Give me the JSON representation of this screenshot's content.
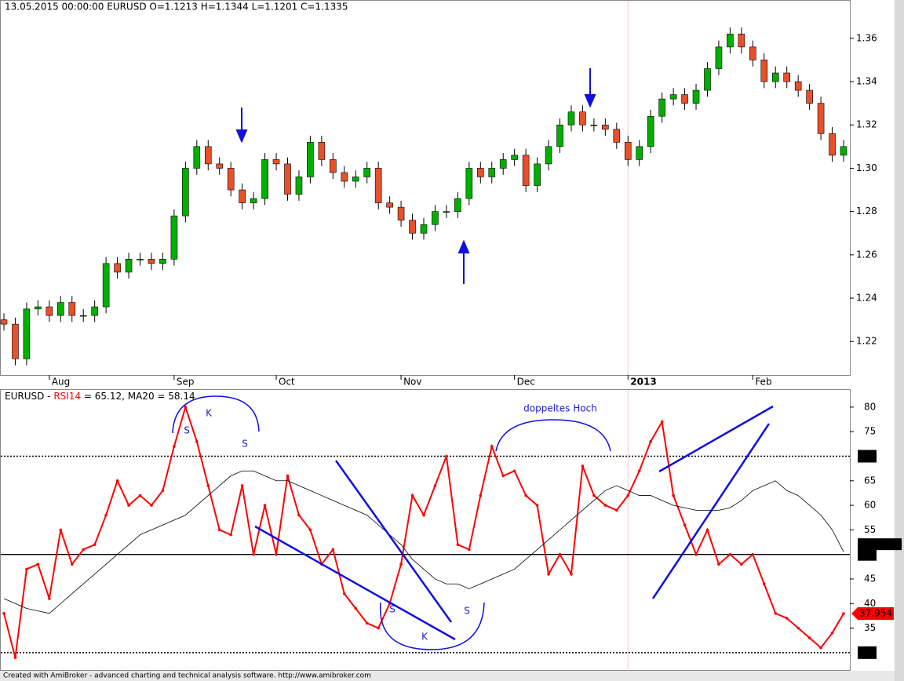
{
  "chart_data": [
    {
      "type": "candlestick",
      "title": "13.05.2015 00:00:00 EURUSD  O=1.1213  H=1.1344  L=1.1201  C=1.1335",
      "up_color": "#00b000",
      "down_color": "#e8502a",
      "ylim": [
        1.2045,
        1.3777
      ],
      "yticks": [
        {
          "value": 1.22,
          "label": "1.22"
        },
        {
          "value": 1.24,
          "label": "1.24"
        },
        {
          "value": 1.26,
          "label": "1.26"
        },
        {
          "value": 1.28,
          "label": "1.28"
        },
        {
          "value": 1.3,
          "label": "1.30"
        },
        {
          "value": 1.32,
          "label": "1.32"
        },
        {
          "value": 1.34,
          "label": "1.34"
        },
        {
          "value": 1.36,
          "label": "1.36"
        }
      ],
      "month_labels": [
        {
          "value": 4,
          "label": "Aug"
        },
        {
          "value": 15,
          "label": "Sep"
        },
        {
          "value": 24,
          "label": "Oct"
        },
        {
          "value": 35,
          "label": "Nov"
        },
        {
          "value": 45,
          "label": "Dec"
        },
        {
          "value": 55,
          "label": "2013"
        },
        {
          "value": 66,
          "label": "Feb"
        }
      ],
      "open": [
        1.23,
        1.228,
        1.212,
        1.235,
        1.236,
        1.232,
        1.238,
        1.232,
        1.232,
        1.236,
        1.256,
        1.252,
        1.258,
        1.258,
        1.256,
        1.258,
        1.278,
        1.3,
        1.31,
        1.302,
        1.3,
        1.29,
        1.284,
        1.286,
        1.304,
        1.302,
        1.288,
        1.296,
        1.312,
        1.304,
        1.298,
        1.294,
        1.296,
        1.3,
        1.284,
        1.282,
        1.276,
        1.27,
        1.274,
        1.28,
        1.28,
        1.286,
        1.3,
        1.296,
        1.3,
        1.304,
        1.306,
        1.292,
        1.302,
        1.31,
        1.32,
        1.326,
        1.32,
        1.32,
        1.318,
        1.312,
        1.304,
        1.31,
        1.324,
        1.332,
        1.334,
        1.33,
        1.336,
        1.346,
        1.356,
        1.362,
        1.356,
        1.35,
        1.34,
        1.344,
        1.34,
        1.336,
        1.33,
        1.316,
        1.306
      ],
      "high": [
        1.233,
        1.231,
        1.238,
        1.239,
        1.239,
        1.241,
        1.241,
        1.235,
        1.239,
        1.259,
        1.259,
        1.261,
        1.261,
        1.261,
        1.261,
        1.281,
        1.303,
        1.313,
        1.313,
        1.305,
        1.303,
        1.293,
        1.289,
        1.307,
        1.307,
        1.305,
        1.299,
        1.315,
        1.315,
        1.307,
        1.301,
        1.299,
        1.303,
        1.303,
        1.287,
        1.285,
        1.279,
        1.277,
        1.283,
        1.283,
        1.289,
        1.303,
        1.303,
        1.303,
        1.307,
        1.309,
        1.309,
        1.305,
        1.313,
        1.323,
        1.329,
        1.329,
        1.323,
        1.323,
        1.321,
        1.315,
        1.313,
        1.327,
        1.335,
        1.337,
        1.337,
        1.339,
        1.349,
        1.359,
        1.365,
        1.365,
        1.359,
        1.353,
        1.347,
        1.347,
        1.343,
        1.339,
        1.333,
        1.319,
        1.313
      ],
      "low": [
        1.225,
        1.209,
        1.209,
        1.232,
        1.229,
        1.229,
        1.229,
        1.229,
        1.229,
        1.233,
        1.249,
        1.249,
        1.255,
        1.253,
        1.253,
        1.255,
        1.275,
        1.297,
        1.299,
        1.297,
        1.287,
        1.281,
        1.281,
        1.283,
        1.299,
        1.285,
        1.285,
        1.293,
        1.301,
        1.295,
        1.291,
        1.291,
        1.293,
        1.281,
        1.279,
        1.273,
        1.267,
        1.267,
        1.271,
        1.277,
        1.277,
        1.283,
        1.293,
        1.293,
        1.297,
        1.301,
        1.289,
        1.289,
        1.299,
        1.307,
        1.317,
        1.317,
        1.317,
        1.315,
        1.309,
        1.301,
        1.301,
        1.307,
        1.321,
        1.329,
        1.327,
        1.327,
        1.333,
        1.343,
        1.353,
        1.353,
        1.347,
        1.337,
        1.337,
        1.337,
        1.333,
        1.327,
        1.313,
        1.303,
        1.303
      ],
      "close": [
        1.228,
        1.212,
        1.235,
        1.236,
        1.232,
        1.238,
        1.232,
        1.232,
        1.236,
        1.256,
        1.252,
        1.258,
        1.258,
        1.256,
        1.258,
        1.278,
        1.3,
        1.31,
        1.302,
        1.3,
        1.29,
        1.284,
        1.286,
        1.304,
        1.302,
        1.288,
        1.296,
        1.312,
        1.304,
        1.298,
        1.294,
        1.296,
        1.3,
        1.284,
        1.282,
        1.276,
        1.27,
        1.274,
        1.28,
        1.28,
        1.286,
        1.3,
        1.296,
        1.3,
        1.304,
        1.306,
        1.292,
        1.302,
        1.31,
        1.32,
        1.326,
        1.32,
        1.32,
        1.318,
        1.312,
        1.304,
        1.31,
        1.324,
        1.332,
        1.334,
        1.33,
        1.336,
        1.346,
        1.356,
        1.362,
        1.356,
        1.35,
        1.34,
        1.344,
        1.34,
        1.336,
        1.33,
        1.316,
        1.306,
        1.31
      ]
    },
    {
      "type": "line",
      "title_parts": [
        "EURUSD - ",
        "RSI14",
        " = 65.12, MA20 = 58.14"
      ],
      "ylim": [
        26.3,
        83.5
      ],
      "yticks": [
        35,
        40,
        45,
        55,
        60,
        65,
        75,
        80
      ],
      "hlines": [
        {
          "value": 70,
          "style": "dotted"
        },
        {
          "value": 50,
          "style": "solid"
        },
        {
          "value": 30,
          "style": "dotted"
        }
      ],
      "series": [
        {
          "name": "RSI14",
          "color": "#ff0000",
          "values": [
            38,
            29,
            47,
            48,
            41,
            55,
            48,
            51,
            52,
            58,
            65,
            60,
            62,
            60,
            63,
            72,
            80,
            73,
            64,
            55,
            54,
            64,
            50,
            60,
            50,
            66,
            58,
            55,
            48,
            51,
            42,
            39,
            36,
            35,
            40,
            48,
            62,
            58,
            64,
            70,
            52,
            51,
            62,
            72,
            66,
            67,
            62,
            60,
            46,
            50,
            46,
            68,
            62,
            60,
            59,
            62,
            67,
            73,
            77,
            62,
            56,
            50,
            55,
            48,
            50,
            48,
            50,
            44,
            38,
            37,
            35,
            33,
            31,
            34,
            37.954
          ]
        },
        {
          "name": "MA20",
          "color": "#000000",
          "values": [
            41,
            40,
            39,
            38.5,
            38,
            40,
            42,
            44,
            46,
            48,
            50,
            52,
            54,
            55,
            56,
            57,
            58,
            60,
            62,
            64,
            66,
            67,
            67,
            66,
            65,
            65,
            64,
            63,
            62,
            61,
            60,
            59,
            58,
            56,
            54,
            52,
            49,
            47,
            45,
            44,
            44,
            43,
            44,
            45,
            46,
            47,
            49,
            51,
            53,
            55,
            57,
            59,
            61,
            63,
            64,
            63,
            62,
            62,
            61,
            60,
            59.5,
            59,
            59,
            59,
            59.5,
            61,
            63,
            64,
            65,
            63,
            62,
            60,
            58,
            55,
            50.5621
          ]
        }
      ],
      "annotations": [
        "S",
        "K",
        "S",
        "S",
        "K",
        "S",
        "doppeltes Hoch"
      ]
    },
    {
      "footer": "Created with AmiBroker - advanced charting and technical analysis software. http://www.amibroker.com"
    }
  ]
}
